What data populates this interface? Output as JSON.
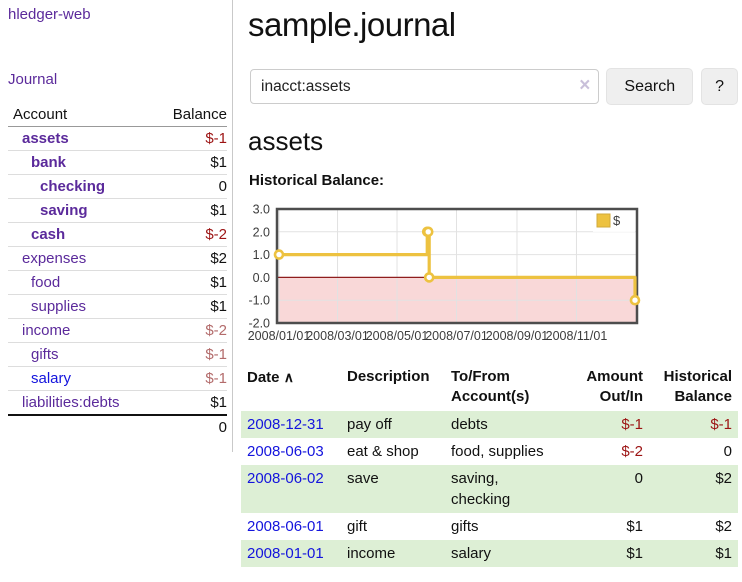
{
  "sidebar": {
    "app_title": "hledger-web",
    "journal_link": "Journal",
    "accounts": {
      "col_account": "Account",
      "col_balance": "Balance",
      "rows": [
        {
          "name": "assets",
          "balance": "$-1"
        },
        {
          "name": "bank",
          "balance": "$1"
        },
        {
          "name": "checking",
          "balance": "0"
        },
        {
          "name": "saving",
          "balance": "$1"
        },
        {
          "name": "cash",
          "balance": "$-2"
        },
        {
          "name": "expenses",
          "balance": "$2"
        },
        {
          "name": "food",
          "balance": "$1"
        },
        {
          "name": "supplies",
          "balance": "$1"
        },
        {
          "name": "income",
          "balance": "$-2"
        },
        {
          "name": "gifts",
          "balance": "$-1"
        },
        {
          "name": "salary",
          "balance": "$-1"
        },
        {
          "name": "liabilities:debts",
          "balance": "$1"
        }
      ],
      "total": "0"
    }
  },
  "main": {
    "title": "sample.journal",
    "search": {
      "value": "inacct:assets",
      "clear_icon": "×",
      "search_button": "Search",
      "help_button": "?"
    },
    "account_heading": "assets",
    "chart_heading": "Historical Balance:"
  },
  "chart_data": {
    "type": "line",
    "step": true,
    "title": "Historical Balance:",
    "xlabel": "",
    "ylabel": "",
    "ylim": [
      -2,
      3
    ],
    "yticks": [
      3,
      2,
      1,
      0,
      -1,
      -2
    ],
    "xticks": [
      "2008/01/01",
      "2008/03/01",
      "2008/05/01",
      "2008/07/01",
      "2008/09/01",
      "2008/11/01"
    ],
    "xrange": [
      "2008-01-01",
      "2008-12-31"
    ],
    "grid": true,
    "legend_position": "top-right",
    "legend": [
      {
        "label": "$",
        "color": "#edc240"
      }
    ],
    "series": [
      {
        "name": "$",
        "color": "#edc240",
        "points": [
          [
            "2008-01-01",
            1
          ],
          [
            "2008-06-01",
            2
          ],
          [
            "2008-06-02",
            2
          ],
          [
            "2008-06-03",
            0
          ],
          [
            "2008-12-31",
            -1
          ]
        ]
      }
    ],
    "negative_region_fill": "#f9d8d8",
    "zero_line_color": "#8f1d1d"
  },
  "register": {
    "headers": {
      "date": "Date",
      "sort_icon": "∧",
      "description": "Description",
      "accounts": "To/From Account(s)",
      "amount": "Amount Out/In",
      "balance": "Historical Balance"
    },
    "rows": [
      {
        "date": "2008-12-31",
        "description": "pay off",
        "accounts": "debts",
        "amount": "$-1",
        "balance": "$-1"
      },
      {
        "date": "2008-06-03",
        "description": "eat & shop",
        "accounts": "food, supplies",
        "amount": "$-2",
        "balance": "0"
      },
      {
        "date": "2008-06-02",
        "description": "save",
        "accounts": "saving, checking",
        "amount": "0",
        "balance": "$2"
      },
      {
        "date": "2008-06-01",
        "description": "gift",
        "accounts": "gifts",
        "amount": "$1",
        "balance": "$2"
      },
      {
        "date": "2008-01-01",
        "description": "income",
        "accounts": "salary",
        "amount": "$1",
        "balance": "$1"
      }
    ]
  }
}
